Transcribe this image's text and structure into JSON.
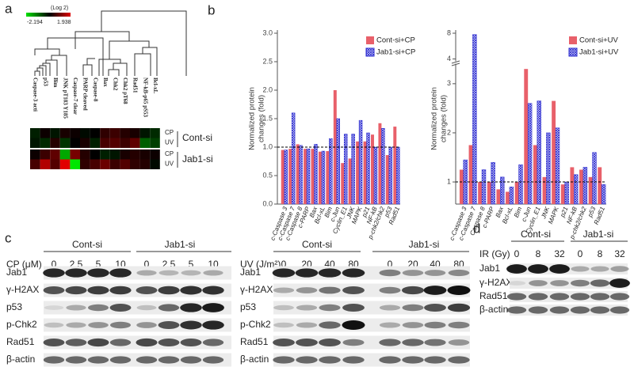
{
  "panel_labels": [
    "a",
    "b",
    "c",
    "d"
  ],
  "heatmap": {
    "scale_title": "(Log 2)",
    "scale_min": -2.194,
    "scale_max": 1.938,
    "columns": [
      "Caspase-3 acti",
      "p53",
      "Bim",
      "JNK pT183 Y185",
      "Caspase-7 clear",
      "PARP cleaved",
      "Caspase-8",
      "Bax",
      "Chk2",
      "Chk2 pT68",
      "Rad51",
      "NF-kB-p65 pS53",
      "Bcl-xL"
    ],
    "row_labels": [
      "CP",
      "UV",
      "CP",
      "UV"
    ],
    "groups": [
      "Cont-si",
      "Jab1-si"
    ],
    "values": [
      [
        -0.3,
        0.1,
        -0.2,
        0.2,
        0.1,
        -0.1,
        0.0,
        0.4,
        0.5,
        0.3,
        0.2,
        -0.2,
        -0.4
      ],
      [
        -0.2,
        -0.4,
        0.3,
        -0.5,
        0.0,
        0.2,
        -0.3,
        0.6,
        0.7,
        0.5,
        0.8,
        -0.9,
        -0.6
      ],
      [
        0.1,
        0.5,
        0.8,
        -1.6,
        1.0,
        0.3,
        0.0,
        -0.3,
        -0.2,
        0.2,
        0.3,
        0.2,
        0.1
      ],
      [
        0.6,
        1.5,
        0.7,
        1.9,
        -2.194,
        0.4,
        0.6,
        0.9,
        0.5,
        0.7,
        0.4,
        0.3,
        -0.1
      ]
    ]
  },
  "chart_data": [
    {
      "type": "bar",
      "y_label": [
        "Normalized protein",
        "changes (fold)"
      ],
      "categories": [
        "c-Caspase 3",
        "c-Caspase 7",
        "c-Caspase 8",
        "c-PARP",
        "Bax",
        "Bcl-xL",
        "Bim",
        "c-Jun",
        "Cyclin_E1",
        "JNK",
        "MAPK",
        "p21",
        "NF-kB",
        "p-chk2/chk2",
        "p53",
        "Rad51"
      ],
      "series": [
        {
          "name": "Cont-si+CP",
          "color": "#e8606a",
          "hatch": false,
          "values": [
            0.95,
            0.97,
            1.05,
            0.97,
            0.97,
            0.92,
            0.93,
            2.0,
            0.72,
            0.8,
            1.1,
            1.1,
            1.22,
            1.42,
            0.86,
            1.36
          ]
        },
        {
          "name": "Jab1-si+CP",
          "color": "#2a2ad0",
          "hatch": true,
          "values": [
            0.95,
            1.6,
            1.03,
            0.97,
            1.05,
            0.93,
            1.15,
            1.5,
            1.23,
            1.23,
            1.47,
            1.25,
            1.0,
            1.33,
            1.0,
            1.0
          ]
        }
      ],
      "ylim": [
        0,
        3.0
      ],
      "yticks": [
        {
          "value": 0,
          "label": "0.0"
        },
        {
          "value": 0.5,
          "label": "0.5"
        },
        {
          "value": 1,
          "label": "1.0"
        },
        {
          "value": 1.5,
          "label": "1.5"
        },
        {
          "value": 2,
          "label": "2.0"
        },
        {
          "value": 2.5,
          "label": "2.5"
        },
        {
          "value": 3,
          "label": "3.0"
        }
      ],
      "reference_line": 1,
      "legend": "upper right"
    },
    {
      "type": "bar",
      "y_label": [
        "Normalized protein",
        "changes (fold)"
      ],
      "categories": [
        "c-Caspase 3",
        "c-Caspase 7",
        "Caspase 8",
        "c-PARP",
        "Bax",
        "Bcl-xL",
        "Bim",
        "c-Jun",
        "Cyclin_E1",
        "JNK",
        "MAPK",
        "p21",
        "NF-kB",
        "p-chk2/chk2",
        "p53",
        "Rad51"
      ],
      "series": [
        {
          "name": "Cont-si+UV",
          "color": "#e8606a",
          "hatch": false,
          "values": [
            1.25,
            1.75,
            1.0,
            1.0,
            0.85,
            0.8,
            1.0,
            3.3,
            1.75,
            1.1,
            2.65,
            0.95,
            1.3,
            1.25,
            1.1,
            1.3
          ]
        },
        {
          "name": "Jab1-si+UV",
          "color": "#2a2ad0",
          "hatch": true,
          "values": [
            1.45,
            7.8,
            1.25,
            1.4,
            1.1,
            0.9,
            1.35,
            2.6,
            2.65,
            2.0,
            2.1,
            1.0,
            1.15,
            1.3,
            1.6,
            0.95
          ]
        }
      ],
      "ylim": [
        0.55,
        8
      ],
      "axis_break": [
        3.4,
        3.7
      ],
      "yticks": [
        1,
        2,
        3,
        4,
        8
      ],
      "reference_line": 1,
      "legend": "upper right"
    }
  ],
  "blots": [
    {
      "treatment": "CP (μM)",
      "groups": [
        "Cont-si",
        "Jab1-si"
      ],
      "lanes": [
        "0",
        "2.5",
        "5",
        "10",
        "0",
        "2.5",
        "5",
        "10"
      ],
      "proteins": [
        "Jab1",
        "γ-H2AX",
        "p53",
        "p-Chk2",
        "Rad51",
        "β-actin"
      ]
    },
    {
      "treatment": "UV (J/m²)",
      "groups": [
        "Cont-si",
        "Jab1-si"
      ],
      "lanes": [
        "0",
        "20",
        "40",
        "80",
        "0",
        "20",
        "40",
        "80"
      ],
      "proteins": [
        "Jab1",
        "γ-H2AX",
        "p53",
        "p-Chk2",
        "Rad51",
        "β-actin"
      ]
    },
    {
      "treatment": "IR (Gy)",
      "groups": [
        "Cont-si",
        "Jab1-si"
      ],
      "lanes": [
        "0",
        "8",
        "32",
        "0",
        "8",
        "32"
      ],
      "proteins": [
        "Jab1",
        "γ-H2AX",
        "Rad51",
        "β-actin"
      ]
    }
  ]
}
